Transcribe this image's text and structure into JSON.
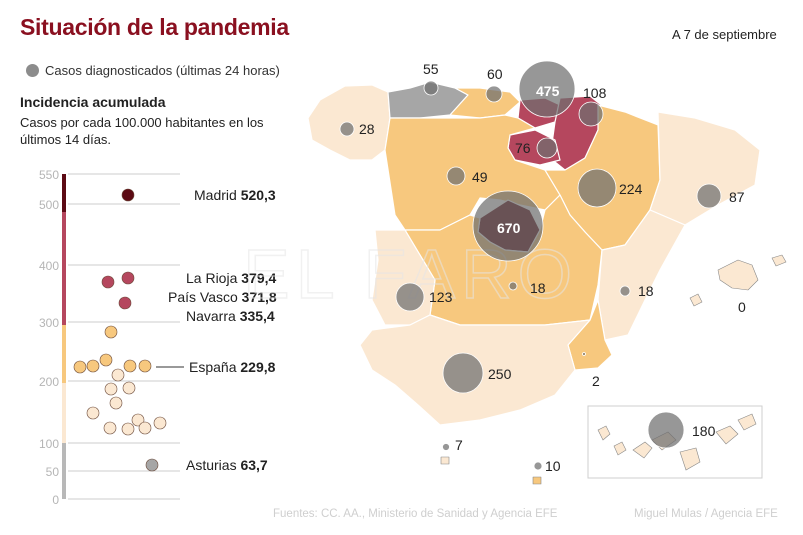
{
  "header": {
    "title": "Situación de la pandemia",
    "date": "A 7 de septiembre"
  },
  "legend": {
    "bubble_label": "Casos diagnosticados (últimas 24 horas)",
    "bubble_color": "#8c8c8c"
  },
  "incidence": {
    "heading": "Incidencia acumulada",
    "subtitle": "Casos por cada 100.000 habitantes en los últimos 14 días.",
    "axis_ticks": [
      "550",
      "500",
      "400",
      "300",
      "200",
      "100",
      "50",
      "0"
    ],
    "labels": [
      {
        "name": "Madrid",
        "value": "520,3"
      },
      {
        "name": "La Rioja",
        "value": "379,4"
      },
      {
        "name": "País Vasco",
        "value": "371,8"
      },
      {
        "name": "Navarra",
        "value": "335,4"
      },
      {
        "name": "España",
        "value": "229,8"
      },
      {
        "name": "Asturias",
        "value": "63,7"
      }
    ],
    "colors": {
      "very_high": "#5c0a14",
      "high": "#b5475e",
      "medium": "#f7c87e",
      "low": "#fbe8d2",
      "very_low": "#a6a6a6"
    }
  },
  "chart_data": {
    "type": "scatter",
    "title": "Incidencia acumulada",
    "ylim": [
      0,
      550
    ],
    "series": [
      {
        "values": [
          520.3,
          379.4,
          371.8,
          335.4,
          283,
          240,
          236,
          234,
          232,
          230,
          229.8,
          215,
          200,
          190,
          175,
          162,
          160,
          150,
          132,
          128,
          127,
          125,
          63.7
        ]
      }
    ]
  },
  "map": {
    "watermark": "EL FARO",
    "regions": [
      {
        "name": "Galicia",
        "cases": "28"
      },
      {
        "name": "Asturias",
        "cases": "55"
      },
      {
        "name": "Cantabria",
        "cases": "60"
      },
      {
        "name": "País Vasco",
        "cases": "475"
      },
      {
        "name": "Navarra",
        "cases": "108"
      },
      {
        "name": "La Rioja",
        "cases": "76"
      },
      {
        "name": "Castilla y León",
        "cases": "49"
      },
      {
        "name": "Aragón",
        "cases": "224"
      },
      {
        "name": "Cataluña",
        "cases": "87"
      },
      {
        "name": "Madrid",
        "cases": "670"
      },
      {
        "name": "Castilla-La Mancha",
        "cases": "18"
      },
      {
        "name": "Extremadura",
        "cases": "123"
      },
      {
        "name": "Comunidad Valenciana",
        "cases": "18"
      },
      {
        "name": "Baleares",
        "cases": "0"
      },
      {
        "name": "Murcia",
        "cases": "2"
      },
      {
        "name": "Andalucía",
        "cases": "250"
      },
      {
        "name": "Ceuta",
        "cases": "7"
      },
      {
        "name": "Melilla",
        "cases": "10"
      },
      {
        "name": "Canarias",
        "cases": "180"
      }
    ]
  },
  "footer": {
    "source": "Fuentes: CC. AA., Ministerio de Sanidad y Agencia EFE",
    "credit": "Miguel Mulas / Agencia EFE"
  }
}
